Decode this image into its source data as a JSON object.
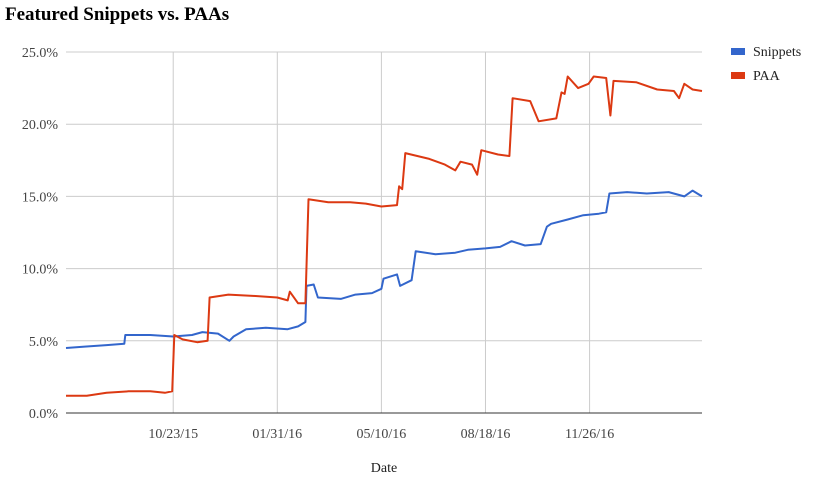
{
  "chart_data": {
    "type": "line",
    "title": "Featured Snippets vs. PAAs",
    "xlabel": "Date",
    "ylabel": "",
    "x_type": "date",
    "xlim": [
      "2015-07-12",
      "2017-03-14"
    ],
    "ylim": [
      0,
      25
    ],
    "y_ticks": [
      "0.0%",
      "5.0%",
      "10.0%",
      "15.0%",
      "20.0%",
      "25.0%"
    ],
    "x_ticks": [
      {
        "label": "10/23/15",
        "date": "2015-10-23"
      },
      {
        "label": "01/31/16",
        "date": "2016-01-31"
      },
      {
        "label": "05/10/16",
        "date": "2016-05-10"
      },
      {
        "label": "08/18/16",
        "date": "2016-08-18"
      },
      {
        "label": "11/26/16",
        "date": "2016-11-26"
      }
    ],
    "grid": "vertical and horizontal",
    "legend_position": "top-right",
    "series": [
      {
        "name": "Snippets",
        "color": "#3366cc",
        "points": [
          [
            "2015-07-12",
            4.5
          ],
          [
            "2015-07-30",
            4.6
          ],
          [
            "2015-08-20",
            4.7
          ],
          [
            "2015-09-06",
            4.8
          ],
          [
            "2015-09-07",
            5.4
          ],
          [
            "2015-10-01",
            5.4
          ],
          [
            "2015-10-23",
            5.3
          ],
          [
            "2015-11-10",
            5.4
          ],
          [
            "2015-11-20",
            5.6
          ],
          [
            "2015-12-05",
            5.5
          ],
          [
            "2015-12-16",
            5.0
          ],
          [
            "2015-12-20",
            5.3
          ],
          [
            "2016-01-01",
            5.8
          ],
          [
            "2016-01-20",
            5.9
          ],
          [
            "2016-02-10",
            5.8
          ],
          [
            "2016-02-20",
            6.0
          ],
          [
            "2016-02-27",
            6.3
          ],
          [
            "2016-02-28",
            8.8
          ],
          [
            "2016-03-06",
            8.9
          ],
          [
            "2016-03-10",
            8.0
          ],
          [
            "2016-04-01",
            7.9
          ],
          [
            "2016-04-15",
            8.2
          ],
          [
            "2016-05-01",
            8.3
          ],
          [
            "2016-05-10",
            8.6
          ],
          [
            "2016-05-12",
            9.3
          ],
          [
            "2016-05-25",
            9.6
          ],
          [
            "2016-05-28",
            8.8
          ],
          [
            "2016-06-08",
            9.2
          ],
          [
            "2016-06-12",
            11.2
          ],
          [
            "2016-07-01",
            11.0
          ],
          [
            "2016-07-20",
            11.1
          ],
          [
            "2016-08-01",
            11.3
          ],
          [
            "2016-08-18",
            11.4
          ],
          [
            "2016-09-01",
            11.5
          ],
          [
            "2016-09-12",
            11.9
          ],
          [
            "2016-09-25",
            11.6
          ],
          [
            "2016-10-10",
            11.7
          ],
          [
            "2016-10-16",
            12.9
          ],
          [
            "2016-10-20",
            13.1
          ],
          [
            "2016-11-05",
            13.4
          ],
          [
            "2016-11-20",
            13.7
          ],
          [
            "2016-12-05",
            13.8
          ],
          [
            "2016-12-12",
            13.9
          ],
          [
            "2016-12-15",
            15.2
          ],
          [
            "2017-01-01",
            15.3
          ],
          [
            "2017-01-20",
            15.2
          ],
          [
            "2017-02-10",
            15.3
          ],
          [
            "2017-02-25",
            15.0
          ],
          [
            "2017-03-05",
            15.4
          ],
          [
            "2017-03-14",
            15.0
          ]
        ]
      },
      {
        "name": "PAA",
        "color": "#dc3912",
        "points": [
          [
            "2015-07-12",
            1.2
          ],
          [
            "2015-08-01",
            1.2
          ],
          [
            "2015-08-20",
            1.4
          ],
          [
            "2015-09-10",
            1.5
          ],
          [
            "2015-10-01",
            1.5
          ],
          [
            "2015-10-15",
            1.4
          ],
          [
            "2015-10-22",
            1.5
          ],
          [
            "2015-10-24",
            5.4
          ],
          [
            "2015-11-01",
            5.1
          ],
          [
            "2015-11-15",
            4.9
          ],
          [
            "2015-11-25",
            5.0
          ],
          [
            "2015-11-27",
            8.0
          ],
          [
            "2015-12-15",
            8.2
          ],
          [
            "2016-01-10",
            8.1
          ],
          [
            "2016-01-31",
            8.0
          ],
          [
            "2016-02-10",
            7.8
          ],
          [
            "2016-02-12",
            8.4
          ],
          [
            "2016-02-20",
            7.6
          ],
          [
            "2016-02-27",
            7.6
          ],
          [
            "2016-03-01",
            14.8
          ],
          [
            "2016-03-20",
            14.6
          ],
          [
            "2016-04-10",
            14.6
          ],
          [
            "2016-04-25",
            14.5
          ],
          [
            "2016-05-10",
            14.3
          ],
          [
            "2016-05-25",
            14.4
          ],
          [
            "2016-05-27",
            15.7
          ],
          [
            "2016-05-30",
            15.5
          ],
          [
            "2016-06-02",
            18.0
          ],
          [
            "2016-06-25",
            17.6
          ],
          [
            "2016-07-10",
            17.2
          ],
          [
            "2016-07-20",
            16.8
          ],
          [
            "2016-07-25",
            17.4
          ],
          [
            "2016-08-05",
            17.2
          ],
          [
            "2016-08-10",
            16.5
          ],
          [
            "2016-08-14",
            18.2
          ],
          [
            "2016-08-30",
            17.9
          ],
          [
            "2016-09-10",
            17.8
          ],
          [
            "2016-09-13",
            21.8
          ],
          [
            "2016-09-30",
            21.6
          ],
          [
            "2016-10-08",
            20.2
          ],
          [
            "2016-10-25",
            20.4
          ],
          [
            "2016-10-30",
            22.2
          ],
          [
            "2016-11-02",
            22.1
          ],
          [
            "2016-11-05",
            23.3
          ],
          [
            "2016-11-15",
            22.5
          ],
          [
            "2016-11-25",
            22.8
          ],
          [
            "2016-11-30",
            23.3
          ],
          [
            "2016-12-12",
            23.2
          ],
          [
            "2016-12-16",
            20.6
          ],
          [
            "2016-12-19",
            23.0
          ],
          [
            "2017-01-10",
            22.9
          ],
          [
            "2017-01-30",
            22.4
          ],
          [
            "2017-02-15",
            22.3
          ],
          [
            "2017-02-20",
            21.8
          ],
          [
            "2017-02-25",
            22.8
          ],
          [
            "2017-03-05",
            22.4
          ],
          [
            "2017-03-14",
            22.3
          ]
        ]
      }
    ]
  }
}
